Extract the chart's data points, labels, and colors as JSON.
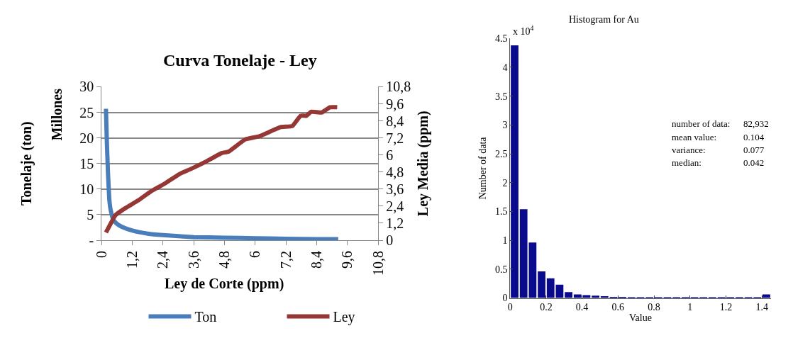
{
  "chart_data": [
    {
      "type": "line",
      "title": "Curva Tonelaje - Ley",
      "xlabel": "Ley de Corte (ppm)",
      "ylabel": "Tonelaje (ton)",
      "y2label": "Ley Media (ppm)",
      "annotations": [
        "Millones"
      ],
      "series": [
        {
          "name": "Ton",
          "color": "#4a7ebb",
          "x": [
            0.17,
            0.2,
            0.25,
            0.3,
            0.35,
            0.45,
            0.6,
            0.8,
            1.2,
            1.8,
            2.4,
            3,
            3.6,
            4.8,
            6,
            7.2,
            8.4,
            9.24
          ],
          "values": [
            25.7,
            20,
            13,
            8,
            6,
            4,
            3.2,
            2.6,
            1.9,
            1.3,
            1,
            0.8,
            0.6,
            0.5,
            0.4,
            0.3,
            0.2,
            0.2
          ]
        },
        {
          "name": "Ley",
          "color": "#953735",
          "axis": "y2",
          "x": [
            0.17,
            0.54,
            0.91,
            1.42,
            1.92,
            2.47,
            3.03,
            3.49,
            4.04,
            4.68,
            4.96,
            5.6,
            6.16,
            6.99,
            7.45,
            7.77,
            8.0,
            8.18,
            8.6,
            8.92,
            9.2
          ],
          "values": [
            0.54,
            1.76,
            2.24,
            2.79,
            3.43,
            3.99,
            4.65,
            5.02,
            5.5,
            6.13,
            6.24,
            7.09,
            7.32,
            7.96,
            8.04,
            8.76,
            8.76,
            9.04,
            8.99,
            9.36,
            9.36
          ]
        }
      ],
      "xlim": [
        0,
        10.8
      ],
      "xticks": [
        0,
        {
          "value": 1.2,
          "label": "1,2"
        },
        {
          "value": 2.4,
          "label": "2,4"
        },
        {
          "value": 3.6,
          "label": "3,6"
        },
        {
          "value": 4.8,
          "label": "4,8"
        },
        6,
        {
          "value": 7.2,
          "label": "7,2"
        },
        {
          "value": 8.4,
          "label": "8,4"
        },
        {
          "value": 9.6,
          "label": "9,6"
        },
        {
          "value": 10.8,
          "label": "10,8"
        }
      ],
      "ylim": [
        0,
        30
      ],
      "yticks": [
        {
          "value": 0,
          "label": "-"
        },
        5,
        10,
        15,
        20,
        25,
        30
      ],
      "y2lim": [
        0,
        10.8
      ],
      "y2ticks": [
        0,
        {
          "value": 1.2,
          "label": "1,2"
        },
        {
          "value": 2.4,
          "label": "2,4"
        },
        {
          "value": 3.6,
          "label": "3,6"
        },
        {
          "value": 4.8,
          "label": "4,8"
        },
        6,
        {
          "value": 7.2,
          "label": "7,2"
        },
        {
          "value": 8.4,
          "label": "8,4"
        },
        {
          "value": 9.6,
          "label": "9,6"
        },
        {
          "value": 10.8,
          "label": "10,8"
        }
      ],
      "grid": "y",
      "legend": "bottom",
      "marker": "none",
      "line_style": "solid"
    },
    {
      "type": "histogram",
      "title": "Histogram for Au",
      "xlabel": "Value",
      "ylabel": "Number of data",
      "color": "#0a0a8c",
      "annotations": [
        "x 10$^{4}$",
        "number of data:",
        "82,932",
        "mean value:",
        "0.104",
        "variance:",
        "0.077",
        "median:",
        "0.042"
      ],
      "bins": [
        0,
        0.05,
        0.1,
        0.15,
        0.2,
        0.25,
        0.3,
        0.35,
        0.4,
        0.45,
        0.5,
        0.55,
        0.6,
        0.65,
        0.7,
        0.75,
        0.8,
        0.85,
        0.9,
        0.95,
        1.0,
        1.05,
        1.1,
        1.15,
        1.2,
        1.25,
        1.3,
        1.35,
        1.4,
        1.45
      ],
      "values": [
        4.38,
        1.54,
        0.96,
        0.46,
        0.34,
        0.23,
        0.1,
        0.06,
        0.05,
        0.04,
        0.03,
        0.02,
        0.02,
        0.01,
        0.01,
        0.01,
        0.01,
        0.01,
        0.01,
        0.01,
        0.01,
        0.01,
        0.01,
        0.01,
        0.01,
        0.01,
        0.01,
        0.01,
        0.06
      ],
      "xlim": [
        0,
        1.45
      ],
      "xticks": [
        0,
        0.2,
        0.4,
        0.6,
        0.8,
        1,
        1.2,
        1.4
      ],
      "ylim": [
        0,
        4.5
      ],
      "yticks": [
        0,
        0.5,
        1,
        1.5,
        2,
        2.5,
        3,
        3.5,
        4,
        4.5
      ],
      "grid": false
    }
  ]
}
